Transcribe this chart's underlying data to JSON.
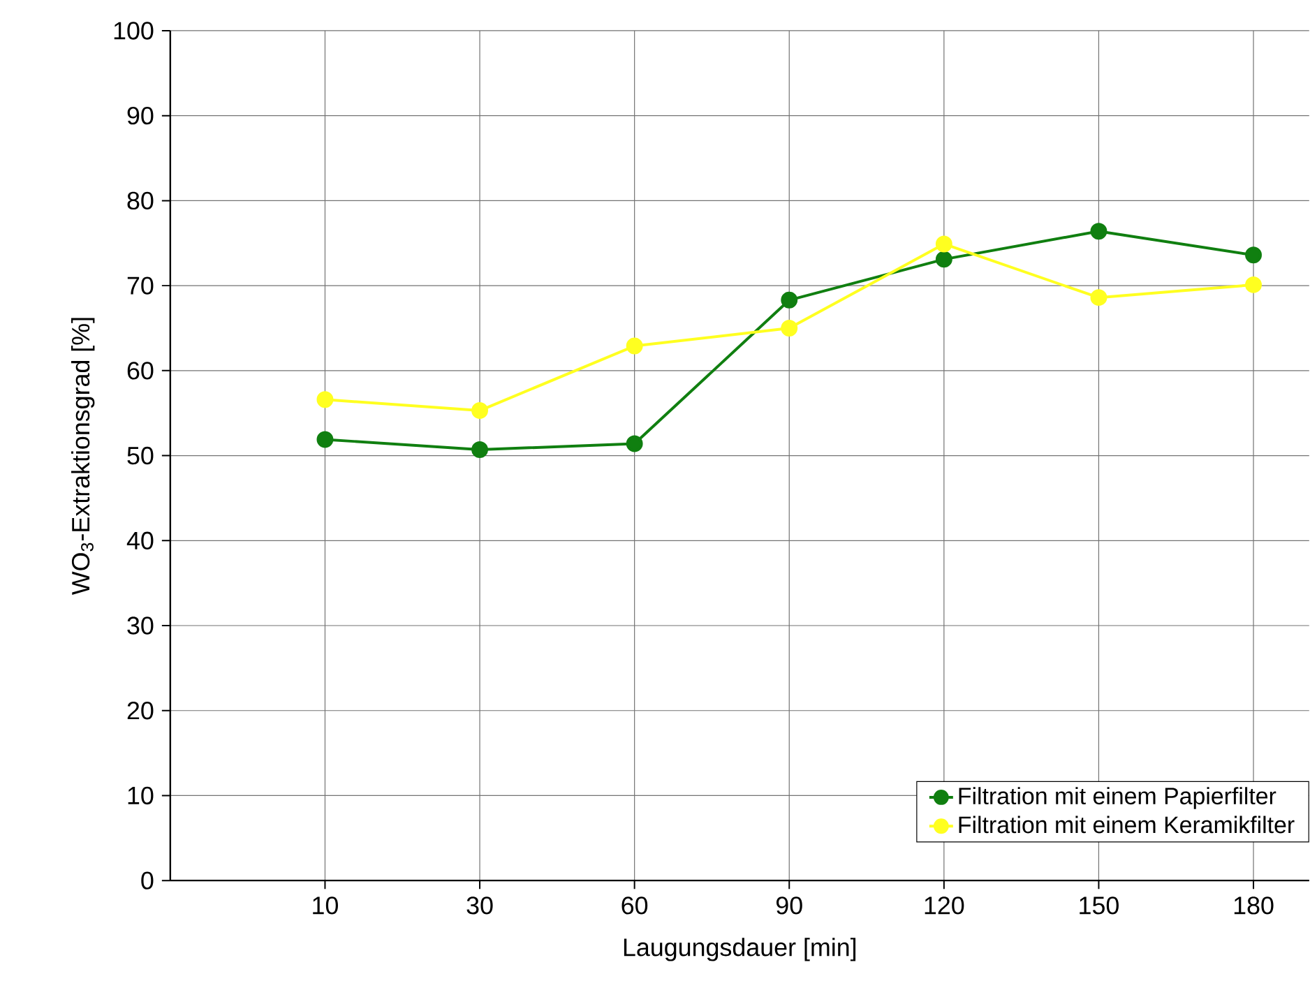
{
  "chart_data": {
    "type": "line",
    "xlabel": "Laugungsdauer [min]",
    "ylabel": "WO$_{3}$-Extraktionsgrad [%]",
    "categories": [
      "10",
      "30",
      "60",
      "90",
      "120",
      "150",
      "180"
    ],
    "series": [
      {
        "name": "Filtration mit einem Papierfilter",
        "color": "#107f10",
        "values": [
          51.9,
          50.7,
          51.4,
          68.3,
          73.1,
          76.4,
          73.6
        ]
      },
      {
        "name": "Filtration mit einem Keramikfilter",
        "color": "#ffff20",
        "values": [
          56.6,
          55.3,
          62.9,
          65.0,
          74.9,
          68.6,
          70.1
        ]
      }
    ],
    "ylim": [
      0,
      100
    ],
    "yticks": [
      0,
      10,
      20,
      30,
      40,
      50,
      60,
      70,
      80,
      90,
      100
    ],
    "grid": true,
    "legend": "bottom right",
    "marker": "circle",
    "line_style": "solid"
  }
}
